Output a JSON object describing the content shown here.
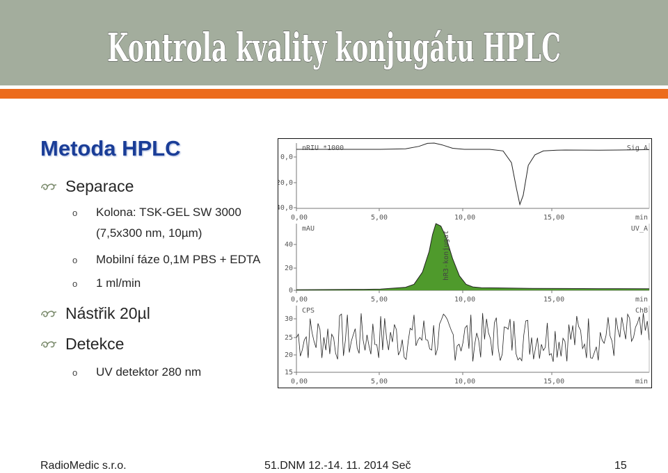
{
  "slide": {
    "title": "Kontrola kvality konjugátu HPLC",
    "heading": "Metoda HPLC",
    "bullets": [
      {
        "level": 1,
        "text": "Separace"
      },
      {
        "level": 2,
        "text": "Kolona: TSK-GEL SW 3000"
      },
      {
        "level": 2,
        "text": "(7,5x300 nm, 10µm)"
      },
      {
        "level": 2,
        "text": "Mobilní fáze 0,1M PBS + EDTA"
      },
      {
        "level": 2,
        "text": "1 ml/min"
      },
      {
        "level": 1,
        "text": "Nástřik 20µl"
      },
      {
        "level": 1,
        "text": "Detekce"
      },
      {
        "level": 2,
        "text": "UV detektor 280 nm"
      }
    ],
    "bullet_icons": {
      "level1": "swirl-bullet-icon",
      "level2": "circle-bullet-icon",
      "level2_glyph": "o"
    },
    "colors": {
      "title_band": "#a3ad9d",
      "orange_bar": "#ec6b1c",
      "heading": "#1a3d97",
      "peak_fill": "#4f9a2c"
    },
    "footer": {
      "left": "RadioMedic s.r.o.",
      "center": "51.DNM 12.-14. 11. 2014 Seč",
      "page": "15"
    }
  },
  "chart_data": [
    {
      "type": "line",
      "ylabel": "nRIU *1000",
      "series_label": "Sig A",
      "xlabel": "min",
      "x_ticks": [
        "0,00",
        "5,00",
        "10,00",
        "15,00"
      ],
      "y_ticks": [
        "0,0",
        "-20,0",
        "-40,0"
      ],
      "xlim": [
        0,
        21
      ],
      "ylim": [
        -45,
        5
      ],
      "points": [
        [
          0,
          0.2
        ],
        [
          5,
          0.2
        ],
        [
          6.5,
          0.6
        ],
        [
          7.3,
          2.5
        ],
        [
          7.8,
          4.8
        ],
        [
          8.2,
          5
        ],
        [
          8.7,
          3.5
        ],
        [
          9.3,
          1
        ],
        [
          10,
          0.2
        ],
        [
          11.5,
          0.2
        ],
        [
          12.3,
          -1
        ],
        [
          12.8,
          -10
        ],
        [
          13.1,
          -30
        ],
        [
          13.3,
          -42
        ],
        [
          13.5,
          -35
        ],
        [
          13.8,
          -12
        ],
        [
          14.2,
          -4
        ],
        [
          14.7,
          -1
        ],
        [
          15.5,
          -0.5
        ],
        [
          16,
          -0.3
        ],
        [
          18,
          -0.4
        ],
        [
          20,
          -0.2
        ],
        [
          21,
          0
        ]
      ]
    },
    {
      "type": "area",
      "ylabel": "mAU",
      "series_label": "UV_A",
      "annotation": "hR3-konjugat",
      "xlabel": "min",
      "x_ticks": [
        "0,00",
        "5,00",
        "10,00",
        "15,00"
      ],
      "y_ticks": [
        "40",
        "20",
        "0"
      ],
      "xlim": [
        0,
        21
      ],
      "ylim": [
        0,
        55
      ],
      "points": [
        [
          0,
          0.5
        ],
        [
          4,
          0.8
        ],
        [
          5,
          1
        ],
        [
          6,
          2
        ],
        [
          6.5,
          2.5
        ],
        [
          7,
          5
        ],
        [
          7.5,
          15
        ],
        [
          7.9,
          32
        ],
        [
          8.1,
          46
        ],
        [
          8.3,
          55
        ],
        [
          8.6,
          53
        ],
        [
          8.9,
          44
        ],
        [
          9.3,
          26
        ],
        [
          9.7,
          12
        ],
        [
          10.1,
          5
        ],
        [
          10.5,
          2.8
        ],
        [
          11,
          2.2
        ],
        [
          12,
          2
        ],
        [
          13,
          1.8
        ],
        [
          14,
          1.6
        ],
        [
          16,
          1.5
        ],
        [
          18,
          1.4
        ],
        [
          21,
          1.3
        ]
      ]
    },
    {
      "type": "line",
      "ylabel": "CPS",
      "series_label": "ChB",
      "xlabel": "min",
      "x_ticks": [
        "0,00",
        "5,00",
        "10,00",
        "15,00"
      ],
      "y_ticks": [
        "30",
        "25",
        "20",
        "15"
      ],
      "xlim": [
        0,
        21
      ],
      "ylim": [
        14,
        33
      ],
      "noise": {
        "mean": 24,
        "amplitude": 7,
        "samples": 180
      }
    }
  ]
}
